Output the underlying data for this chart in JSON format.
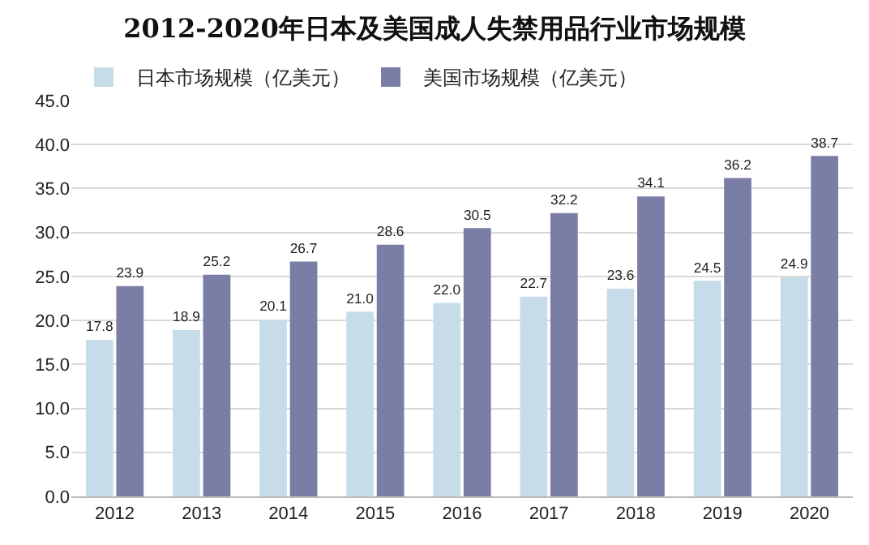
{
  "chart_data": {
    "type": "bar",
    "title": "2012-2020年日本及美国成人失禁用品行业市场规模",
    "categories": [
      "2012",
      "2013",
      "2014",
      "2015",
      "2016",
      "2017",
      "2018",
      "2019",
      "2020"
    ],
    "series": [
      {
        "name": "日本市场规模（亿美元）",
        "color": "#c6dde9",
        "values": [
          17.8,
          18.9,
          20.1,
          21.0,
          22.0,
          22.7,
          23.6,
          24.5,
          24.9
        ],
        "value_labels": [
          "17.8",
          "18.9",
          "20.1",
          "21.0",
          "22.0",
          "22.7",
          "23.6",
          "24.5",
          "24.9"
        ]
      },
      {
        "name": "美国市场规模（亿美元）",
        "color": "#7a7ea6",
        "values": [
          23.9,
          25.2,
          26.7,
          28.6,
          30.5,
          32.2,
          34.1,
          36.2,
          38.7
        ],
        "value_labels": [
          "23.9",
          "25.2",
          "26.7",
          "28.6",
          "30.5",
          "32.2",
          "34.1",
          "36.2",
          "38.7"
        ]
      }
    ],
    "ylim": [
      0,
      45
    ],
    "yticks": [
      {
        "value": 0,
        "label": "0.0"
      },
      {
        "value": 5,
        "label": "5.0"
      },
      {
        "value": 10,
        "label": "10.0"
      },
      {
        "value": 15,
        "label": "15.0"
      },
      {
        "value": 20,
        "label": "20.0"
      },
      {
        "value": 25,
        "label": "25.0"
      },
      {
        "value": 30,
        "label": "30.0"
      },
      {
        "value": 35,
        "label": "35.0"
      },
      {
        "value": 40,
        "label": "40.0"
      },
      {
        "value": 45,
        "label": "45.0"
      }
    ],
    "grid": "y",
    "legend": "top left"
  }
}
